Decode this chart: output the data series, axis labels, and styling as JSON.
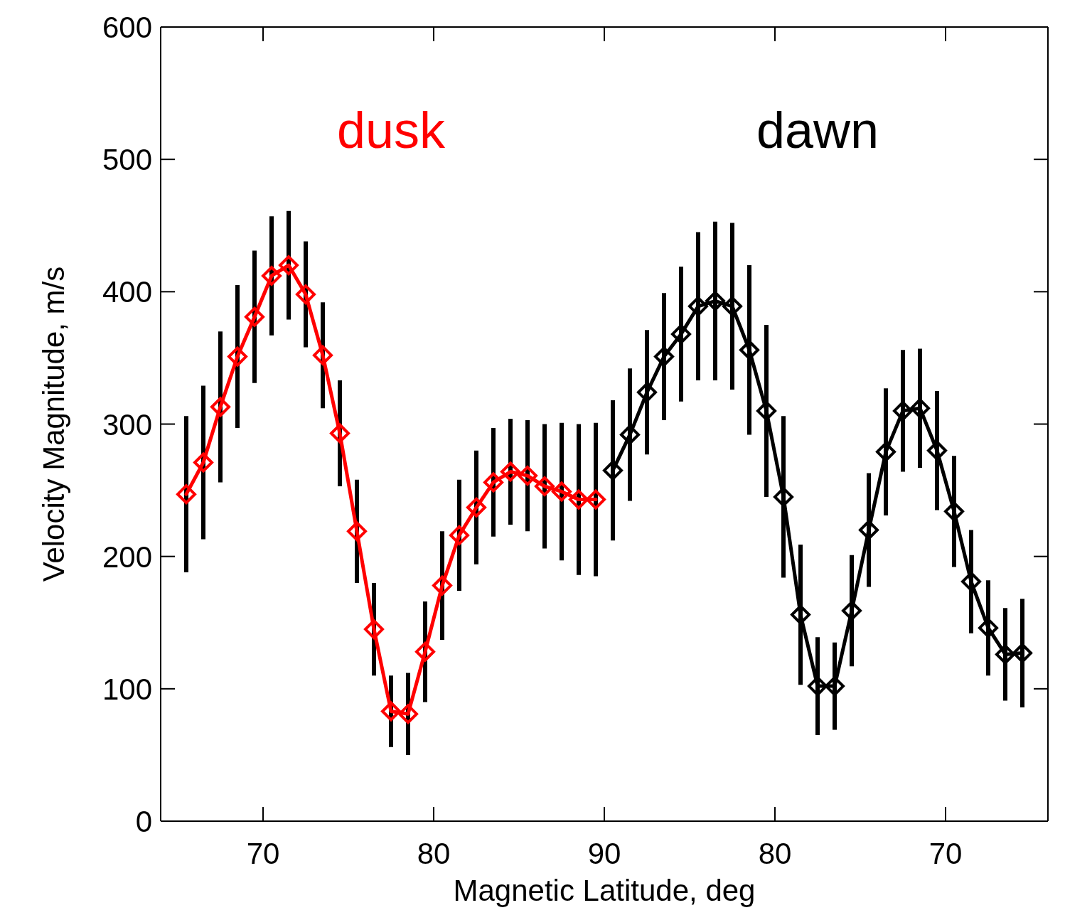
{
  "chart_data": [
    {
      "type": "line",
      "xlabel": "Magnetic Latitude, deg",
      "ylabel": "Velocity Magnitude, m/s",
      "xlim": [
        64,
        90
      ],
      "xticks": [
        70,
        80,
        90
      ],
      "ylim": [
        0,
        600
      ],
      "yticks": [
        0,
        100,
        200,
        300,
        400,
        500,
        600
      ],
      "legend": "top",
      "marker": "diamond",
      "line_style": "solid",
      "series": [
        {
          "name": "dusk",
          "color": "#ff0000",
          "x": [
            65.5,
            66.5,
            67.5,
            68.5,
            69.5,
            70.5,
            71.5,
            72.5,
            73.5,
            74.5,
            75.5,
            76.5,
            77.5,
            78.5,
            79.5,
            80.5,
            81.5,
            82.5,
            83.5,
            84.5,
            85.5,
            86.5,
            87.5,
            88.5,
            89.5
          ],
          "values": [
            247,
            271,
            313,
            351,
            381,
            412,
            420,
            398,
            352,
            293,
            219,
            145,
            83,
            81,
            128,
            178,
            216,
            237,
            256,
            264,
            261,
            253,
            249,
            243,
            243
          ],
          "errors": [
            59,
            58,
            57,
            54,
            50,
            45,
            41,
            40,
            40,
            40,
            39,
            35,
            27,
            31,
            38,
            41,
            42,
            43,
            41,
            40,
            42,
            47,
            52,
            57,
            58
          ]
        }
      ]
    },
    {
      "type": "line",
      "xlim": [
        90,
        64
      ],
      "xticks": [
        80,
        70
      ],
      "ylim": [
        0,
        600
      ],
      "yticks": [
        0,
        100,
        200,
        300,
        400,
        500,
        600
      ],
      "tick_labels": "x",
      "legend": "top",
      "marker": "diamond",
      "line_style": "solid",
      "series": [
        {
          "name": "dawn",
          "color": "#000000",
          "x": [
            89.5,
            88.5,
            87.5,
            86.5,
            85.5,
            84.5,
            83.5,
            82.5,
            81.5,
            80.5,
            79.5,
            78.5,
            77.5,
            76.5,
            75.5,
            74.5,
            73.5,
            72.5,
            71.5,
            70.5,
            69.5,
            68.5,
            67.5,
            66.5,
            65.5
          ],
          "values": [
            265,
            292,
            324,
            351,
            368,
            389,
            393,
            389,
            356,
            310,
            245,
            156,
            102,
            102,
            159,
            220,
            279,
            310,
            312,
            280,
            234,
            181,
            146,
            126,
            127
          ],
          "errors": [
            53,
            50,
            47,
            48,
            51,
            56,
            60,
            63,
            64,
            65,
            61,
            53,
            37,
            33,
            42,
            43,
            48,
            46,
            45,
            45,
            42,
            39,
            36,
            35,
            41
          ]
        }
      ]
    }
  ]
}
